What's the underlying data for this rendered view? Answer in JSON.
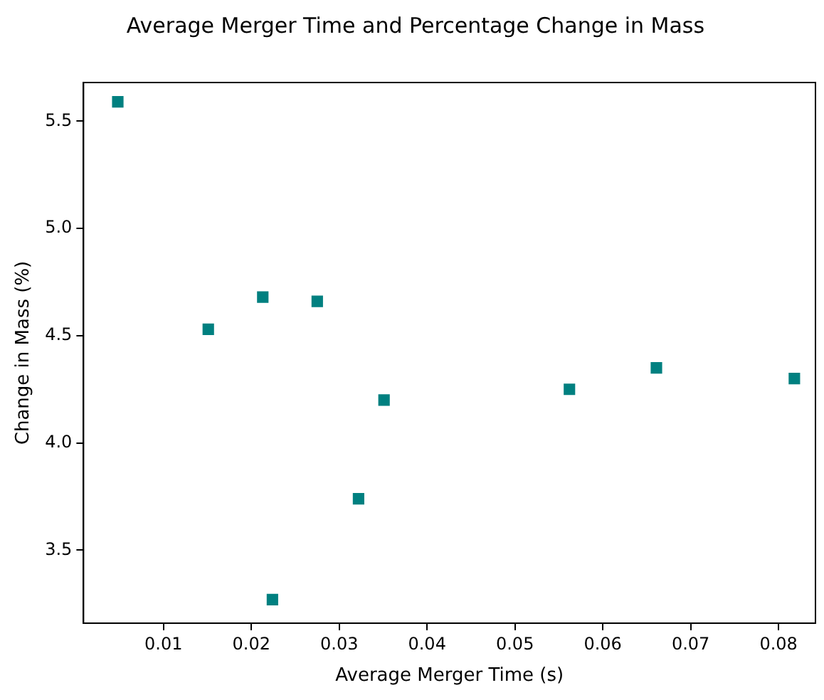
{
  "chart_data": {
    "type": "scatter",
    "title": "Average Merger Time and Percentage Change in Mass",
    "xlabel": "Average Merger Time (s)",
    "ylabel": "Change in Mass (%)",
    "x": [
      0.0048,
      0.0151,
      0.0213,
      0.0275,
      0.0351,
      0.0322,
      0.0224,
      0.0562,
      0.0661,
      0.0818
    ],
    "values": [
      5.59,
      4.53,
      4.68,
      4.66,
      4.2,
      3.74,
      3.27,
      4.25,
      4.35,
      4.3
    ],
    "color": "#008080",
    "marker": "square",
    "xlim": [
      0.0009,
      0.0842
    ],
    "xticks": [
      0.01,
      0.02,
      0.03,
      0.04,
      0.05,
      0.06,
      0.07,
      0.08
    ],
    "ylim": [
      3.16,
      5.68
    ],
    "yticks": [
      3.5,
      {
        "value": 4,
        "label": "4.0"
      },
      4.5,
      {
        "value": 5,
        "label": "5.0"
      },
      5.5
    ],
    "grid": false,
    "legend": false
  }
}
